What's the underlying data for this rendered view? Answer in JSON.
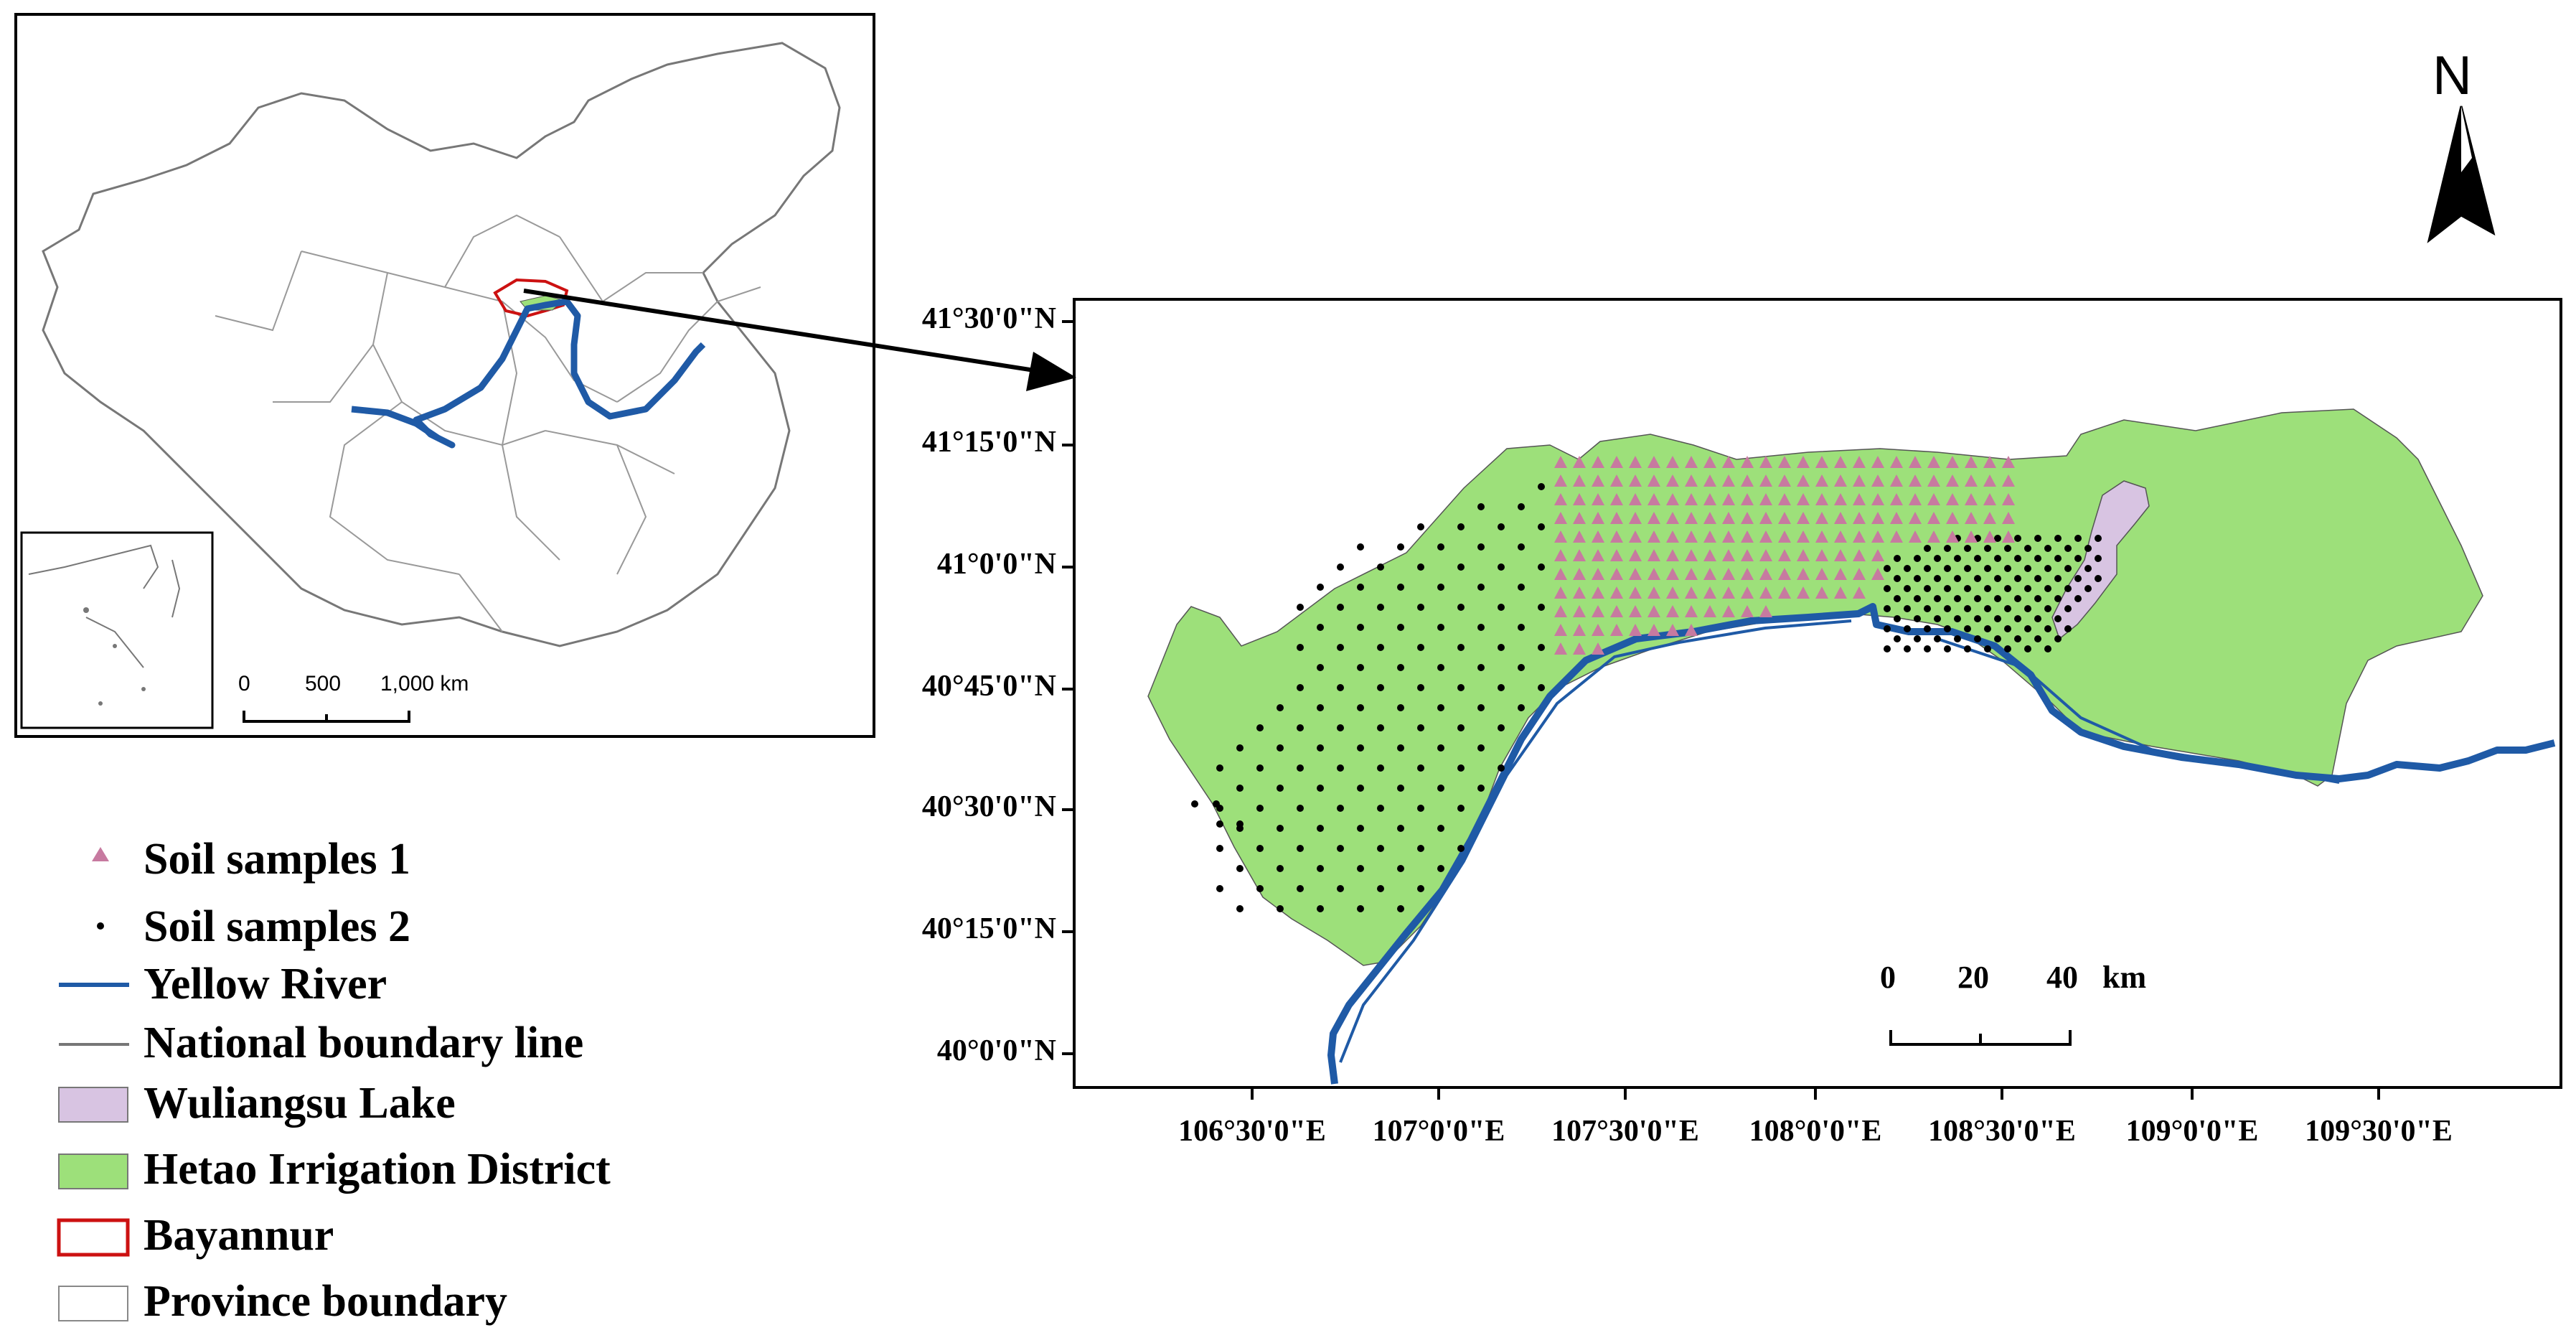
{
  "inset_map": {
    "scale": {
      "ticks": [
        "0",
        "500",
        "1,000 km"
      ]
    }
  },
  "main_map": {
    "lat_labels": [
      "41°30'0\"N",
      "41°15'0\"N",
      "41°0'0\"N",
      "40°45'0\"N",
      "40°30'0\"N",
      "40°15'0\"N",
      "40°0'0\"N"
    ],
    "lon_labels": [
      "106°30'0\"E",
      "107°0'0\"E",
      "107°30'0\"E",
      "108°0'0\"E",
      "108°30'0\"E",
      "109°0'0\"E",
      "109°30'0\"E"
    ],
    "scale": {
      "ticks": [
        "0",
        "20",
        "40"
      ],
      "unit": "km"
    }
  },
  "north_arrow": {
    "label": "N"
  },
  "legend": {
    "items": [
      {
        "label": "Soil samples 1",
        "symbol": "triangle",
        "color": "#c77aa0"
      },
      {
        "label": "Soil samples 2",
        "symbol": "dot",
        "color": "#000000"
      },
      {
        "label": "Yellow River",
        "symbol": "line",
        "color": "#1f5aa6"
      },
      {
        "label": "National  boundary  line",
        "symbol": "line",
        "color": "#777777"
      },
      {
        "label": "Wuliangsu Lake",
        "symbol": "fill",
        "color": "#d8c4e2"
      },
      {
        "label": "Hetao Irrigation District",
        "symbol": "fill",
        "color": "#9de07a"
      },
      {
        "label": "Bayannur",
        "symbol": "outline",
        "color": "#cc1111"
      },
      {
        "label": "Province boundary",
        "symbol": "outline",
        "color": "#888888"
      }
    ]
  },
  "colors": {
    "irrigation_district": "#9de07a",
    "lake": "#d8c4e2",
    "river": "#1f5aa6",
    "bayannur": "#cc1111",
    "soil_samples_1": "#c77aa0",
    "soil_samples_2": "#000000"
  }
}
